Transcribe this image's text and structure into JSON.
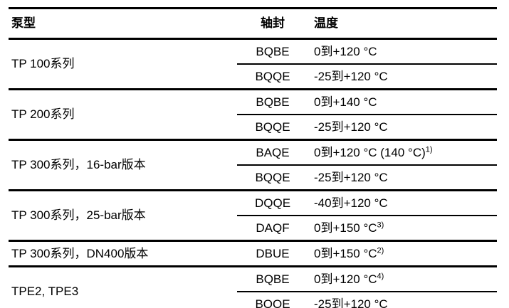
{
  "table": {
    "headers": {
      "pump": "泵型",
      "seal": "轴封",
      "temp": "温度"
    },
    "groups": [
      {
        "pump": "TP 100系列",
        "rows": [
          {
            "seal": "BQBE",
            "temp": "0到+120 °C",
            "sup": ""
          },
          {
            "seal": "BQQE",
            "temp": "-25到+120 °C",
            "sup": ""
          }
        ]
      },
      {
        "pump": "TP 200系列",
        "rows": [
          {
            "seal": "BQBE",
            "temp": "0到+140 °C",
            "sup": ""
          },
          {
            "seal": "BQQE",
            "temp": "-25到+120 °C",
            "sup": ""
          }
        ]
      },
      {
        "pump": "TP 300系列，16-bar版本",
        "rows": [
          {
            "seal": "BAQE",
            "temp": "0到+120 °C (140 °C)",
            "sup": "1)"
          },
          {
            "seal": "BQQE",
            "temp": "-25到+120 °C",
            "sup": ""
          }
        ]
      },
      {
        "pump": "TP 300系列，25-bar版本",
        "rows": [
          {
            "seal": "DQQE",
            "temp": "-40到+120 °C",
            "sup": ""
          },
          {
            "seal": "DAQF",
            "temp": "0到+150 °C",
            "sup": "3)"
          }
        ]
      },
      {
        "pump": "TP 300系列，DN400版本",
        "rows": [
          {
            "seal": "DBUE",
            "temp": "0到+150 °C",
            "sup": "2)"
          }
        ]
      },
      {
        "pump": "TPE2, TPE3",
        "rows": [
          {
            "seal": "BQBE",
            "temp": "0到+120 °C",
            "sup": "4)"
          },
          {
            "seal": "BQQE",
            "temp": "-25到+120 °C",
            "sup": ""
          }
        ]
      }
    ]
  }
}
